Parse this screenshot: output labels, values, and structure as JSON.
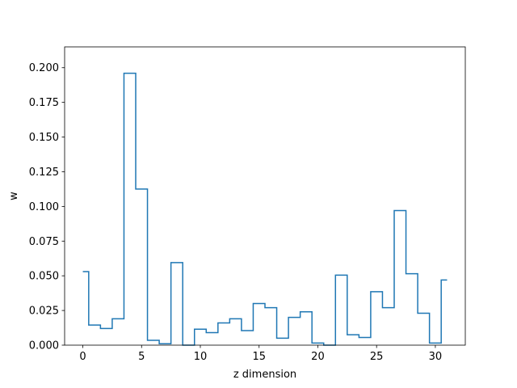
{
  "chart_data": {
    "type": "line",
    "style": "step-mid",
    "xlabel": "z dimension",
    "ylabel": "w",
    "xlim": [
      -1.55,
      32.55
    ],
    "ylim": [
      0.0,
      0.215
    ],
    "grid": false,
    "legend": "none",
    "line_color": "#1f77b4",
    "x": [
      0,
      1,
      2,
      3,
      4,
      5,
      6,
      7,
      8,
      9,
      10,
      11,
      12,
      13,
      14,
      15,
      16,
      17,
      18,
      19,
      20,
      21,
      22,
      23,
      24,
      25,
      26,
      27,
      28,
      29,
      30,
      31
    ],
    "series": [
      {
        "values": [
          0.053,
          0.0145,
          0.012,
          0.019,
          0.196,
          0.1125,
          0.0035,
          0.001,
          0.0595,
          0.0,
          0.0115,
          0.009,
          0.016,
          0.019,
          0.0105,
          0.03,
          0.027,
          0.005,
          0.02,
          0.024,
          0.0015,
          0.0,
          0.0505,
          0.0075,
          0.0055,
          0.0385,
          0.027,
          0.097,
          0.0515,
          0.023,
          0.0015,
          0.047
        ]
      }
    ],
    "xticks": [
      0,
      5,
      10,
      15,
      20,
      25,
      30
    ],
    "xtick_labels": [
      "0",
      "5",
      "10",
      "15",
      "20",
      "25",
      "30"
    ],
    "yticks": [
      0.0,
      0.025,
      0.05,
      0.075,
      0.1,
      0.125,
      0.15,
      0.175,
      0.2
    ],
    "ytick_labels": [
      "0.000",
      "0.025",
      "0.050",
      "0.075",
      "0.100",
      "0.125",
      "0.150",
      "0.175",
      "0.200"
    ]
  }
}
